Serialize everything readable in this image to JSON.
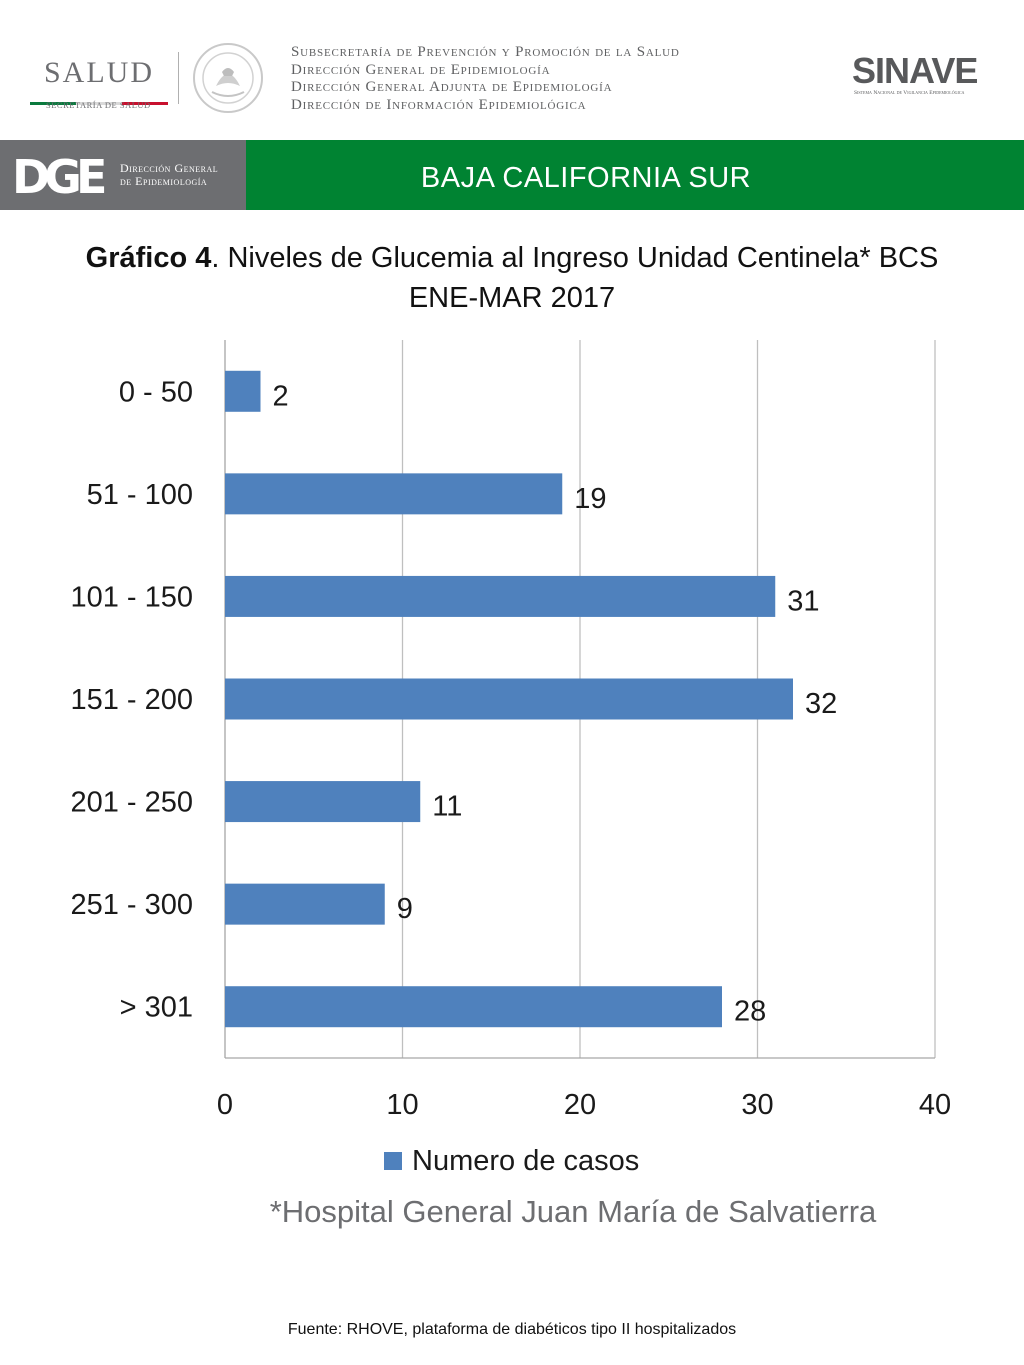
{
  "header": {
    "salud_logo": {
      "word": "SALUD",
      "sub": "SECRETARÍA DE SALUD"
    },
    "seal_icon": "mexican-coat-of-arms-seal",
    "subsecretaria_lines": [
      "Subsecretaría de Prevención y Promoción de la Salud",
      "Dirección General de Epidemiología",
      "Dirección General Adjunta de Epidemiología",
      "Dirección de Información Epidemiológica"
    ],
    "sinave_logo": {
      "word": "SINAVE",
      "sub": "Sistema Nacional de Vigilancia Epidemiológica"
    }
  },
  "banner": {
    "dge_mark": "DGE",
    "dge_text_line1": "Dirección General",
    "dge_text_line2": "de Epidemiología",
    "title": "BAJA CALIFORNIA SUR",
    "grey_color": "#6d6e71",
    "green_color": "#008332"
  },
  "chart_title": {
    "bold_part": "Gráfico 4",
    "rest_part": ". Niveles de Glucemia al Ingreso Unidad Centinela* BCS",
    "line2": "ENE-MAR 2017"
  },
  "chart_data": {
    "type": "bar",
    "orientation": "horizontal",
    "categories": [
      "0 - 50",
      "51 - 100",
      "101 - 150",
      "151 - 200",
      "201 - 250",
      "251 - 300",
      "> 301"
    ],
    "series": [
      {
        "name": "Numero de casos",
        "values": [
          2,
          19,
          31,
          32,
          11,
          9,
          28
        ],
        "color": "#4f81bd"
      }
    ],
    "xlim": [
      0,
      40
    ],
    "xticks": [
      0,
      10,
      20,
      30,
      40
    ],
    "grid": true,
    "legend_position": "bottom",
    "data_labels": true
  },
  "legend": {
    "label": "Numero de casos",
    "color": "#4f81bd"
  },
  "footnote": "*Hospital General Juan María de Salvatierra",
  "source": "Fuente: RHOVE, plataforma de diabéticos tipo II hospitalizados"
}
